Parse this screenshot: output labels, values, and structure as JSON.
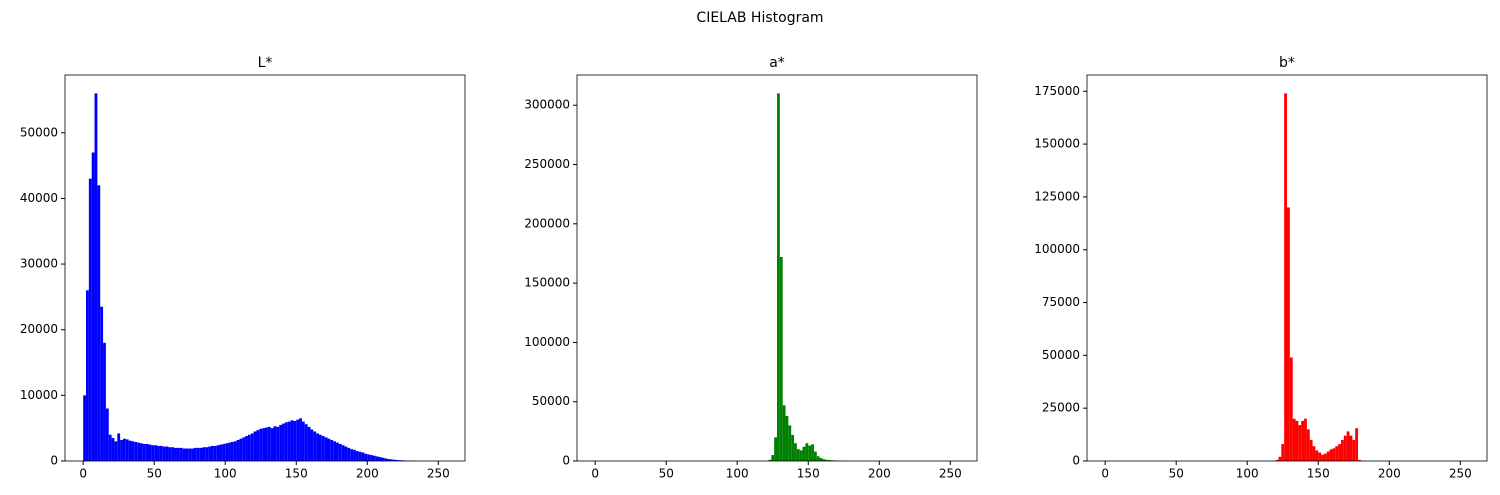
{
  "title": "CIELAB Histogram",
  "chart_data": [
    {
      "type": "histogram",
      "title": "L*",
      "color": "#0000ff",
      "bins": [
        0,
        2,
        4,
        6,
        8,
        10,
        12,
        14,
        16,
        18,
        20,
        22,
        24,
        26,
        28,
        30,
        32,
        34,
        36,
        38,
        40,
        42,
        44,
        46,
        48,
        50,
        52,
        54,
        56,
        58,
        60,
        62,
        64,
        66,
        68,
        70,
        72,
        74,
        76,
        78,
        80,
        82,
        84,
        86,
        88,
        90,
        92,
        94,
        96,
        98,
        100,
        102,
        104,
        106,
        108,
        110,
        112,
        114,
        116,
        118,
        120,
        122,
        124,
        126,
        128,
        130,
        132,
        134,
        136,
        138,
        140,
        142,
        144,
        146,
        148,
        150,
        152,
        154,
        156,
        158,
        160,
        162,
        164,
        166,
        168,
        170,
        172,
        174,
        176,
        178,
        180,
        182,
        184,
        186,
        188,
        190,
        192,
        194,
        196,
        198,
        200,
        202,
        204,
        206,
        208,
        210,
        212,
        214,
        216,
        218,
        220,
        222,
        224,
        226,
        228,
        230,
        232,
        234,
        236,
        238,
        240,
        242,
        244,
        246,
        248,
        250,
        252,
        254,
        256
      ],
      "counts": [
        10000,
        26000,
        43000,
        47000,
        56000,
        42000,
        23500,
        18000,
        8000,
        4000,
        3500,
        3000,
        4200,
        3200,
        3400,
        3300,
        3100,
        3000,
        2900,
        2800,
        2700,
        2600,
        2600,
        2500,
        2400,
        2400,
        2300,
        2300,
        2200,
        2200,
        2100,
        2100,
        2000,
        2000,
        2000,
        1900,
        1900,
        1900,
        1900,
        2000,
        2000,
        2000,
        2100,
        2100,
        2200,
        2300,
        2300,
        2400,
        2500,
        2600,
        2700,
        2800,
        2900,
        3000,
        3200,
        3400,
        3600,
        3800,
        4000,
        4200,
        4500,
        4700,
        4900,
        5000,
        5100,
        5200,
        5000,
        5300,
        5200,
        5500,
        5700,
        5900,
        6000,
        6200,
        6100,
        6300,
        6500,
        6000,
        5600,
        5200,
        4800,
        4500,
        4200,
        4000,
        3800,
        3600,
        3400,
        3200,
        3000,
        2800,
        2600,
        2400,
        2200,
        2000,
        1800,
        1700,
        1500,
        1400,
        1300,
        1100,
        1000,
        900,
        800,
        700,
        600,
        500,
        400,
        300,
        250,
        200,
        150,
        120,
        100,
        80,
        60,
        40,
        30,
        20,
        10,
        5,
        0,
        0,
        0,
        0,
        0,
        0,
        0,
        0
      ],
      "xlim": [
        -12.8,
        268.8
      ],
      "ylim": [
        0,
        58800
      ],
      "xticks": [
        0,
        50,
        100,
        150,
        200,
        250
      ],
      "yticks": [
        0,
        10000,
        20000,
        30000,
        40000,
        50000
      ]
    },
    {
      "type": "histogram",
      "title": "a*",
      "color": "#008000",
      "bins": [
        0,
        2,
        4,
        6,
        8,
        10,
        12,
        14,
        16,
        18,
        20,
        22,
        24,
        26,
        28,
        30,
        32,
        34,
        36,
        38,
        40,
        42,
        44,
        46,
        48,
        50,
        52,
        54,
        56,
        58,
        60,
        62,
        64,
        66,
        68,
        70,
        72,
        74,
        76,
        78,
        80,
        82,
        84,
        86,
        88,
        90,
        92,
        94,
        96,
        98,
        100,
        102,
        104,
        106,
        108,
        110,
        112,
        114,
        116,
        118,
        120,
        122,
        124,
        126,
        128,
        130,
        132,
        134,
        136,
        138,
        140,
        142,
        144,
        146,
        148,
        150,
        152,
        154,
        156,
        158,
        160,
        162,
        164,
        166,
        168,
        170,
        172,
        174,
        176,
        178,
        180,
        182,
        184,
        186,
        188,
        190,
        192,
        194,
        196,
        198,
        200,
        202,
        204,
        206,
        208,
        210,
        212,
        214,
        216,
        218,
        220,
        222,
        224,
        226,
        228,
        230,
        232,
        234,
        236,
        238,
        240,
        242,
        244,
        246,
        248,
        250,
        252,
        254,
        256
      ],
      "counts": [
        0,
        0,
        0,
        0,
        0,
        0,
        0,
        0,
        0,
        0,
        0,
        0,
        0,
        0,
        0,
        0,
        0,
        0,
        0,
        0,
        0,
        0,
        0,
        0,
        0,
        0,
        0,
        0,
        0,
        0,
        0,
        0,
        0,
        0,
        0,
        0,
        0,
        0,
        0,
        0,
        0,
        0,
        0,
        0,
        0,
        0,
        0,
        0,
        0,
        0,
        0,
        0,
        0,
        0,
        0,
        0,
        0,
        0,
        0,
        0,
        200,
        1000,
        5000,
        20000,
        310000,
        172000,
        47000,
        38000,
        30000,
        22000,
        15000,
        10000,
        9000,
        12000,
        15000,
        13000,
        14000,
        8000,
        4000,
        2500,
        1500,
        1000,
        800,
        600,
        500,
        400,
        300,
        200,
        100,
        50,
        0,
        0,
        0,
        0,
        0,
        0,
        0,
        0,
        0,
        0,
        0,
        0,
        0,
        0,
        0,
        0,
        0,
        0,
        0,
        0,
        0,
        0,
        0,
        0,
        0,
        0,
        0,
        0,
        0,
        0,
        0,
        0,
        0,
        0,
        0,
        0,
        0,
        0
      ],
      "xlim": [
        -12.8,
        268.8
      ],
      "ylim": [
        0,
        325500
      ],
      "xticks": [
        0,
        50,
        100,
        150,
        200,
        250
      ],
      "yticks": [
        0,
        50000,
        100000,
        150000,
        200000,
        250000,
        300000
      ]
    },
    {
      "type": "histogram",
      "title": "b*",
      "color": "#ff0000",
      "bins": [
        0,
        2,
        4,
        6,
        8,
        10,
        12,
        14,
        16,
        18,
        20,
        22,
        24,
        26,
        28,
        30,
        32,
        34,
        36,
        38,
        40,
        42,
        44,
        46,
        48,
        50,
        52,
        54,
        56,
        58,
        60,
        62,
        64,
        66,
        68,
        70,
        72,
        74,
        76,
        78,
        80,
        82,
        84,
        86,
        88,
        90,
        92,
        94,
        96,
        98,
        100,
        102,
        104,
        106,
        108,
        110,
        112,
        114,
        116,
        118,
        120,
        122,
        124,
        126,
        128,
        130,
        132,
        134,
        136,
        138,
        140,
        142,
        144,
        146,
        148,
        150,
        152,
        154,
        156,
        158,
        160,
        162,
        164,
        166,
        168,
        170,
        172,
        174,
        176,
        178,
        180,
        182,
        184,
        186,
        188,
        190,
        192,
        194,
        196,
        198,
        200,
        202,
        204,
        206,
        208,
        210,
        212,
        214,
        216,
        218,
        220,
        222,
        224,
        226,
        228,
        230,
        232,
        234,
        236,
        238,
        240,
        242,
        244,
        246,
        248,
        250,
        252,
        254,
        256
      ],
      "counts": [
        0,
        0,
        0,
        0,
        0,
        0,
        0,
        0,
        0,
        0,
        0,
        0,
        0,
        0,
        0,
        0,
        0,
        0,
        0,
        0,
        0,
        0,
        0,
        0,
        0,
        0,
        0,
        0,
        0,
        0,
        0,
        0,
        0,
        0,
        0,
        0,
        0,
        0,
        0,
        0,
        0,
        0,
        0,
        0,
        0,
        0,
        0,
        0,
        0,
        0,
        0,
        0,
        0,
        0,
        0,
        0,
        0,
        0,
        0,
        0,
        500,
        2000,
        8000,
        174000,
        120000,
        49000,
        20000,
        19000,
        17000,
        19000,
        20000,
        15000,
        10000,
        7000,
        5000,
        4000,
        3000,
        3500,
        4500,
        5500,
        6000,
        7000,
        8000,
        10000,
        12000,
        14000,
        12000,
        10000,
        15500,
        500,
        0,
        0,
        0,
        0,
        0,
        0,
        0,
        0,
        0,
        0,
        0,
        0,
        0,
        0,
        0,
        0,
        0,
        0,
        0,
        0,
        0,
        0,
        0,
        0,
        0,
        0,
        0,
        0,
        0,
        0,
        0,
        0,
        0,
        0,
        0,
        0,
        0,
        0
      ],
      "xlim": [
        -12.8,
        268.8
      ],
      "ylim": [
        0,
        182700
      ],
      "xticks": [
        0,
        50,
        100,
        150,
        200,
        250
      ],
      "yticks": [
        0,
        25000,
        50000,
        75000,
        100000,
        125000,
        150000,
        175000
      ]
    }
  ]
}
